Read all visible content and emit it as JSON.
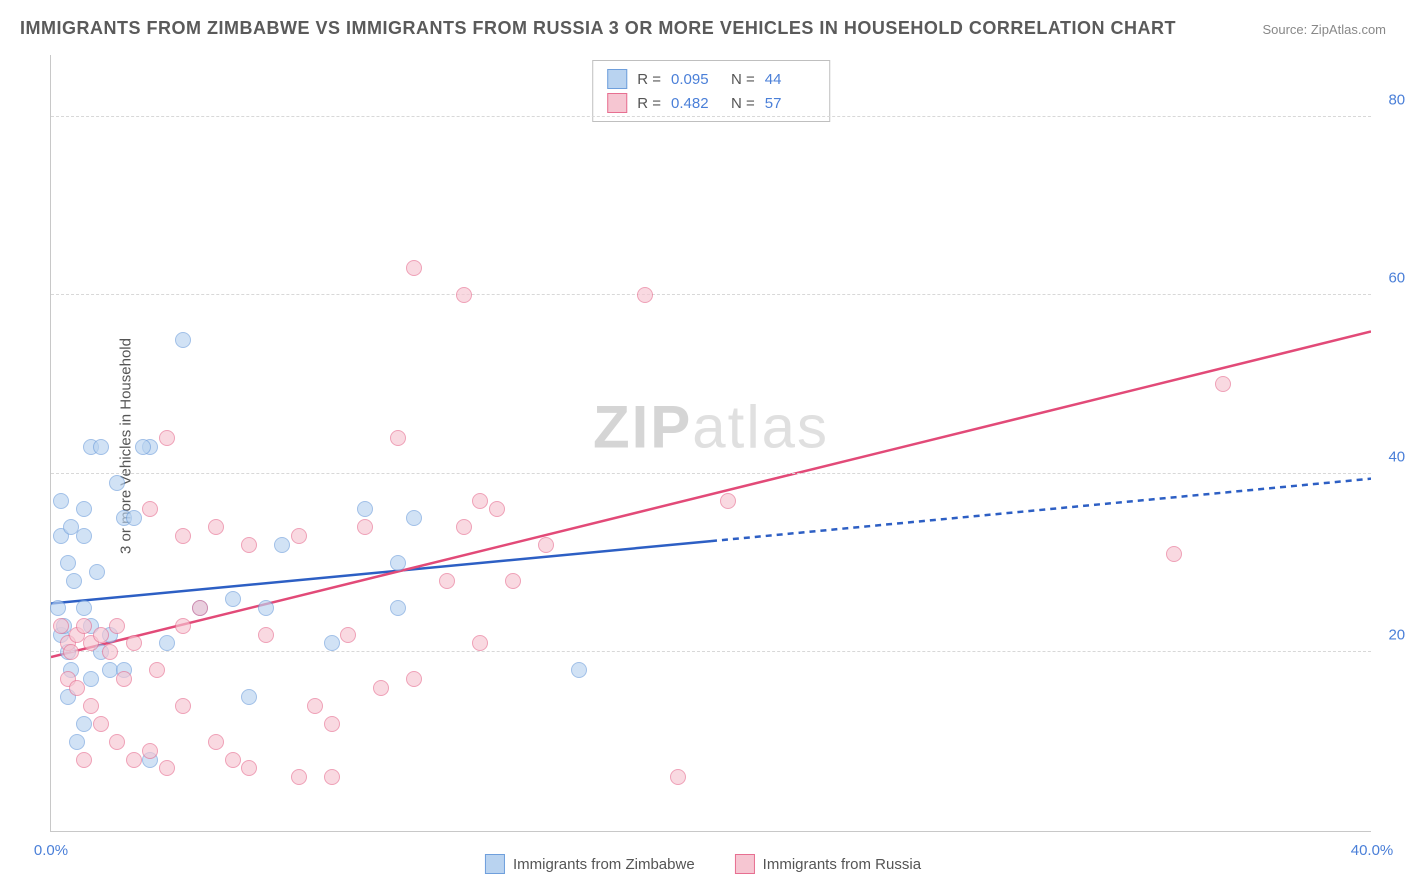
{
  "title": "IMMIGRANTS FROM ZIMBABWE VS IMMIGRANTS FROM RUSSIA 3 OR MORE VEHICLES IN HOUSEHOLD CORRELATION CHART",
  "source": "Source: ZipAtlas.com",
  "y_axis_title": "3 or more Vehicles in Household",
  "watermark_a": "ZIP",
  "watermark_b": "atlas",
  "chart": {
    "type": "scatter",
    "xlim": [
      0,
      40
    ],
    "ylim": [
      0,
      87
    ],
    "x_ticks": [
      {
        "v": 0,
        "l": "0.0%"
      },
      {
        "v": 40,
        "l": "40.0%"
      }
    ],
    "y_ticks": [
      {
        "v": 20,
        "l": "20.0%"
      },
      {
        "v": 40,
        "l": "40.0%"
      },
      {
        "v": 60,
        "l": "60.0%"
      },
      {
        "v": 80,
        "l": "80.0%"
      }
    ],
    "background_color": "#ffffff",
    "grid_color": "#d8d8d8",
    "point_radius": 8,
    "series": [
      {
        "name": "Immigrants from Zimbabwe",
        "fill": "#b9d3f0",
        "stroke": "#6f9fdc",
        "fill_opacity": 0.65,
        "R": "0.095",
        "N": "44",
        "trend": {
          "solid": {
            "x1": 0,
            "y1": 25.5,
            "x2": 20,
            "y2": 32.5
          },
          "dashed": {
            "x1": 20,
            "y1": 32.5,
            "x2": 40,
            "y2": 39.5
          },
          "color": "#2d5fc4",
          "width": 2.5
        },
        "points": [
          [
            0.2,
            25
          ],
          [
            0.3,
            22
          ],
          [
            0.4,
            23
          ],
          [
            0.5,
            20
          ],
          [
            0.6,
            18
          ],
          [
            0.5,
            30
          ],
          [
            0.7,
            28
          ],
          [
            0.3,
            33
          ],
          [
            1.0,
            36
          ],
          [
            1.2,
            43
          ],
          [
            1.5,
            43
          ],
          [
            2.0,
            39
          ],
          [
            2.2,
            35
          ],
          [
            1.0,
            25
          ],
          [
            1.2,
            23
          ],
          [
            1.5,
            20
          ],
          [
            1.8,
            22
          ],
          [
            2.5,
            35
          ],
          [
            3.0,
            43
          ],
          [
            3.5,
            21
          ],
          [
            4.0,
            55
          ],
          [
            4.5,
            25
          ],
          [
            5.5,
            26
          ],
          [
            1.0,
            12
          ],
          [
            0.8,
            10
          ],
          [
            0.5,
            15
          ],
          [
            1.2,
            17
          ],
          [
            1.8,
            18
          ],
          [
            2.2,
            18
          ],
          [
            3.0,
            8
          ],
          [
            6.0,
            15
          ],
          [
            6.5,
            25
          ],
          [
            7.0,
            32
          ],
          [
            8.5,
            21
          ],
          [
            9.5,
            36
          ],
          [
            10.5,
            30
          ],
          [
            10.5,
            25
          ],
          [
            11.0,
            35
          ],
          [
            0.3,
            37
          ],
          [
            0.6,
            34
          ],
          [
            1.0,
            33
          ],
          [
            1.4,
            29
          ],
          [
            16.0,
            18
          ],
          [
            2.8,
            43
          ]
        ]
      },
      {
        "name": "Immigrants from Russia",
        "fill": "#f6c6d2",
        "stroke": "#e76f91",
        "fill_opacity": 0.65,
        "R": "0.482",
        "N": "57",
        "trend": {
          "solid": {
            "x1": 0,
            "y1": 19.5,
            "x2": 40,
            "y2": 56
          },
          "color": "#e24a78",
          "width": 2.5
        },
        "points": [
          [
            0.3,
            23
          ],
          [
            0.5,
            21
          ],
          [
            0.6,
            20
          ],
          [
            0.8,
            22
          ],
          [
            1.0,
            23
          ],
          [
            1.2,
            21
          ],
          [
            1.5,
            22
          ],
          [
            1.8,
            20
          ],
          [
            2.0,
            23
          ],
          [
            2.5,
            21
          ],
          [
            0.5,
            17
          ],
          [
            0.8,
            16
          ],
          [
            1.2,
            14
          ],
          [
            1.5,
            12
          ],
          [
            2.0,
            10
          ],
          [
            2.5,
            8
          ],
          [
            3.0,
            9
          ],
          [
            3.5,
            7
          ],
          [
            4.0,
            14
          ],
          [
            5.0,
            10
          ],
          [
            5.5,
            8
          ],
          [
            6.0,
            7
          ],
          [
            7.5,
            6
          ],
          [
            8.0,
            14
          ],
          [
            8.5,
            6
          ],
          [
            9.0,
            22
          ],
          [
            10.0,
            16
          ],
          [
            11.0,
            17
          ],
          [
            12.0,
            28
          ],
          [
            13.0,
            21
          ],
          [
            13.5,
            36
          ],
          [
            13.0,
            37
          ],
          [
            12.5,
            34
          ],
          [
            11.0,
            63
          ],
          [
            12.5,
            60
          ],
          [
            18.0,
            60
          ],
          [
            3.0,
            36
          ],
          [
            3.5,
            44
          ],
          [
            4.0,
            33
          ],
          [
            4.5,
            25
          ],
          [
            5.0,
            34
          ],
          [
            6.0,
            32
          ],
          [
            6.5,
            22
          ],
          [
            7.5,
            33
          ],
          [
            10.5,
            44
          ],
          [
            15.0,
            32
          ],
          [
            14.0,
            28
          ],
          [
            20.5,
            37
          ],
          [
            35.5,
            50
          ],
          [
            34.0,
            31
          ],
          [
            19.0,
            6
          ],
          [
            1.0,
            8
          ],
          [
            2.2,
            17
          ],
          [
            3.2,
            18
          ],
          [
            4.0,
            23
          ],
          [
            8.5,
            12
          ],
          [
            9.5,
            34
          ]
        ]
      }
    ]
  },
  "stats_box": {
    "r_label": "R =",
    "n_label": "N ="
  },
  "colors": {
    "axis_text": "#4a7fd8",
    "title_text": "#5a5a5a"
  }
}
